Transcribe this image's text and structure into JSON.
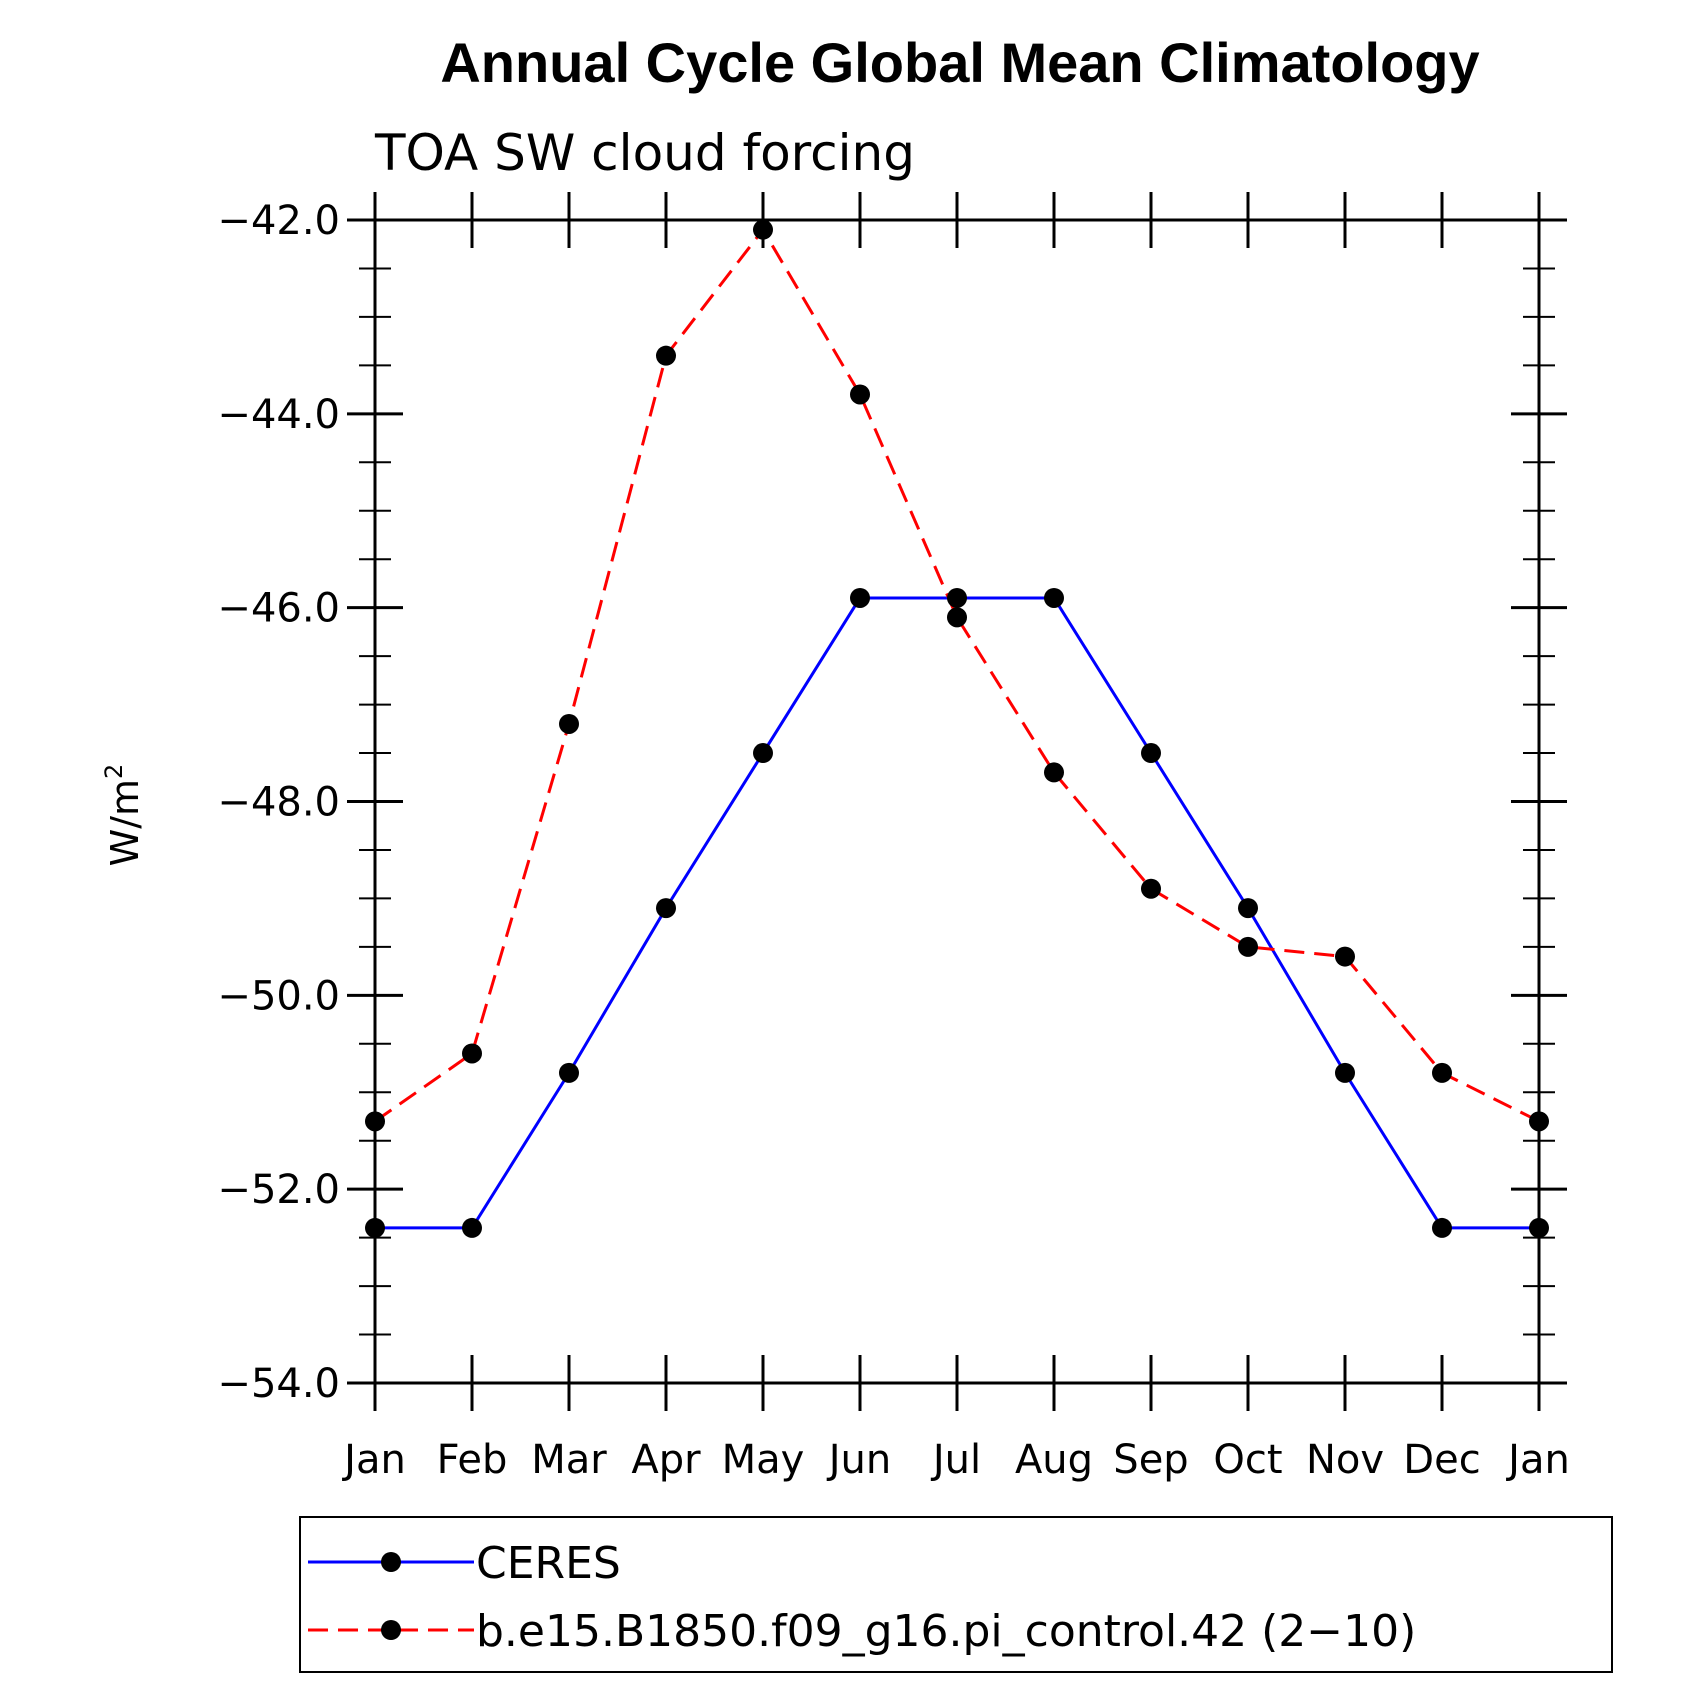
{
  "chart_data": {
    "type": "line",
    "title": "Annual Cycle Global Mean Climatology",
    "subtitle": "TOA SW cloud forcing",
    "ylabel": "W/m",
    "ylabel_superscript": "2",
    "xlabel": "",
    "ylim": [
      -54.0,
      -42.0
    ],
    "y_major_ticks": [
      -54.0,
      -52.0,
      -50.0,
      -48.0,
      -46.0,
      -44.0,
      -42.0
    ],
    "y_tick_labels": [
      "−54.0",
      "−52.0",
      "−50.0",
      "−48.0",
      "−46.0",
      "−44.0",
      "−42.0"
    ],
    "y_minor_step": 0.5,
    "categories": [
      "Jan",
      "Feb",
      "Mar",
      "Apr",
      "May",
      "Jun",
      "Jul",
      "Aug",
      "Sep",
      "Oct",
      "Nov",
      "Dec",
      "Jan"
    ],
    "series": [
      {
        "name": "CERES",
        "color": "#0000ff",
        "dash": "solid",
        "values": [
          -52.4,
          -52.4,
          -50.8,
          -49.1,
          -47.5,
          -45.9,
          -45.9,
          -45.9,
          -47.5,
          -49.1,
          -50.8,
          -52.4,
          -52.4
        ]
      },
      {
        "name": "b.e15.B1850.f09_g16.pi_control.42 (2−10)",
        "color": "#ff0000",
        "dash": "dashed",
        "values": [
          -51.3,
          -50.6,
          -47.2,
          -43.4,
          -42.1,
          -43.8,
          -46.1,
          -47.7,
          -48.9,
          -49.5,
          -49.6,
          -50.8,
          -51.3
        ]
      }
    ],
    "marker_color": "#000000",
    "grid": false,
    "legend_position": "bottom"
  }
}
